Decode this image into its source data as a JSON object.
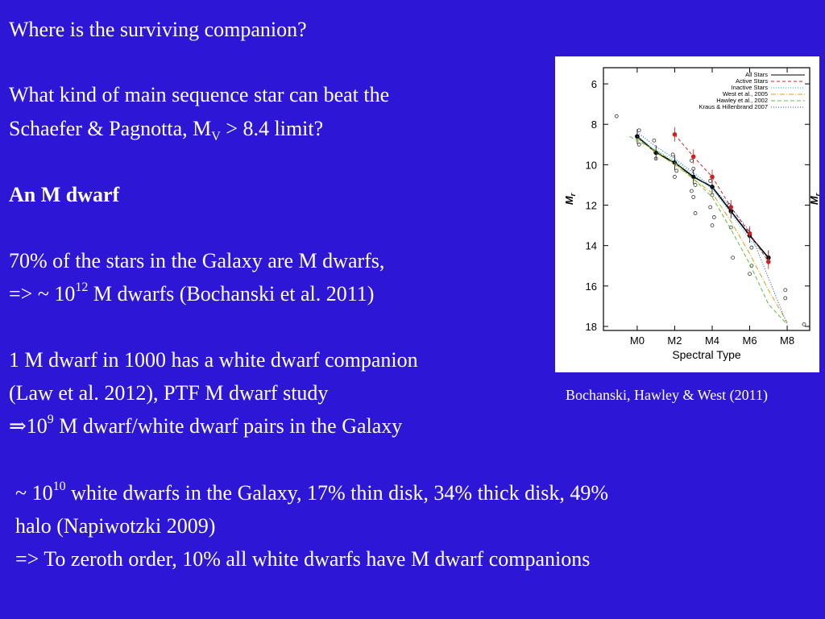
{
  "slide": {
    "q1": "Where is the surviving companion?",
    "q2a": "What kind of main sequence star can beat the",
    "q2b_pre": "Schaefer & Pagnotta, M",
    "q2b_sub": "V",
    "q2b_post": " > 8.4 limit?",
    "answer": "An M dwarf",
    "p1a": "70% of the stars in the Galaxy are M dwarfs,",
    "p1b_pre": "=> ~ 10",
    "p1b_sup": "12",
    "p1b_post": " M dwarfs (Bochanski et al. 2011)",
    "p2a": "1 M dwarf in 1000 has a white dwarf companion",
    "p2b": "(Law et al. 2012), PTF M dwarf study",
    "p2c_arrow": "⇒",
    "p2c_pre": "10",
    "p2c_sup": "9",
    "p2c_post": " M dwarf/white dwarf pairs in the Galaxy",
    "p3a_pre": "~ 10",
    "p3a_sup": "10",
    "p3a_post": " white dwarfs in the Galaxy, 17% thin disk, 34% thick disk, 49%",
    "p3b": "halo (Napiwotzki 2009)",
    "p3c": "=> To zeroth order, 10% all white dwarfs have M dwarf companions",
    "caption": "Bochanski, Hawley & West (2011)"
  },
  "colors": {
    "background": "#2e16d6",
    "text": "#ffffff"
  },
  "chart_data": {
    "type": "line",
    "xlabel": "Spectral Type",
    "ylabel": "Mr",
    "ylabel_main": "M",
    "ylabel_sub": "r",
    "x_ticks": [
      "M0",
      "M2",
      "M4",
      "M6",
      "M8"
    ],
    "x_tick_values": [
      0,
      2,
      4,
      6,
      8
    ],
    "y_ticks": [
      "6",
      "8",
      "10",
      "12",
      "14",
      "16",
      "18"
    ],
    "y_tick_values": [
      6,
      8,
      10,
      12,
      14,
      16,
      18
    ],
    "xlim": [
      -1.8,
      9.2
    ],
    "ylim": [
      18.2,
      5.2
    ],
    "y_inverted": true,
    "legend_position": "top-right",
    "series": [
      {
        "name": "All Stars",
        "color": "#000000",
        "dash": "",
        "x": [
          0,
          1,
          2,
          3,
          4,
          5,
          6,
          7
        ],
        "y": [
          8.6,
          9.4,
          9.9,
          10.6,
          11.1,
          12.3,
          13.5,
          14.6
        ]
      },
      {
        "name": "Active Stars",
        "color": "#cc2222",
        "dash": "4,3",
        "x": [
          2,
          3,
          4,
          5,
          6,
          7
        ],
        "y": [
          8.5,
          9.6,
          10.6,
          12.1,
          13.4,
          14.8
        ]
      },
      {
        "name": "Inactive Stars",
        "color": "#00bcd4",
        "dash": "1,2",
        "x": [
          0,
          1,
          2,
          3,
          4,
          5,
          6,
          7
        ],
        "y": [
          8.6,
          9.3,
          9.8,
          10.5,
          11.2,
          12.4,
          13.7,
          14.7
        ]
      },
      {
        "name": "West et al., 2005",
        "color": "#d4a017",
        "dash": "6,2,1,2",
        "x": [
          0,
          1,
          2,
          3,
          4,
          5,
          6,
          7,
          8
        ],
        "y": [
          8.7,
          9.4,
          10.0,
          10.7,
          11.4,
          12.8,
          14.4,
          16.2,
          17.8
        ]
      },
      {
        "name": "Hawley et al., 2002",
        "color": "#5fbf3f",
        "dash": "5,3",
        "x": [
          -0.4,
          1,
          2,
          3,
          4,
          5,
          6,
          7,
          8
        ],
        "y": [
          8.6,
          9.3,
          9.9,
          10.7,
          11.6,
          13.2,
          14.9,
          16.9,
          17.9
        ]
      },
      {
        "name": "Kraus & Hillenbrand 2007",
        "color": "#2244cc",
        "dash": "1,2",
        "x": [
          0,
          1,
          2,
          3,
          4,
          5,
          6,
          7,
          8
        ],
        "y": [
          8.4,
          9.1,
          9.7,
          10.4,
          11.1,
          12.1,
          13.3,
          15.6,
          17.9
        ]
      }
    ],
    "scatter_points": [
      {
        "x": -1.1,
        "y": 7.6
      },
      {
        "x": 0.1,
        "y": 8.3
      },
      {
        "x": 0.1,
        "y": 9.0
      },
      {
        "x": 0.9,
        "y": 8.8
      },
      {
        "x": 1.0,
        "y": 9.7
      },
      {
        "x": 1.9,
        "y": 9.5
      },
      {
        "x": 2.1,
        "y": 10.3
      },
      {
        "x": 2.0,
        "y": 10.6
      },
      {
        "x": 2.9,
        "y": 9.8
      },
      {
        "x": 3.0,
        "y": 10.2
      },
      {
        "x": 3.1,
        "y": 11.0
      },
      {
        "x": 2.9,
        "y": 11.3
      },
      {
        "x": 3.0,
        "y": 11.6
      },
      {
        "x": 3.9,
        "y": 10.8
      },
      {
        "x": 4.0,
        "y": 11.5
      },
      {
        "x": 3.9,
        "y": 12.1
      },
      {
        "x": 4.1,
        "y": 12.6
      },
      {
        "x": 4.0,
        "y": 13.0
      },
      {
        "x": 3.1,
        "y": 12.4
      },
      {
        "x": 4.9,
        "y": 12.0
      },
      {
        "x": 5.0,
        "y": 13.1
      },
      {
        "x": 5.1,
        "y": 14.6
      },
      {
        "x": 5.9,
        "y": 13.3
      },
      {
        "x": 6.1,
        "y": 14.1
      },
      {
        "x": 6.0,
        "y": 15.4
      },
      {
        "x": 6.1,
        "y": 15.0
      },
      {
        "x": 7.9,
        "y": 16.2
      },
      {
        "x": 7.9,
        "y": 16.6
      },
      {
        "x": 8.9,
        "y": 17.9
      }
    ]
  }
}
